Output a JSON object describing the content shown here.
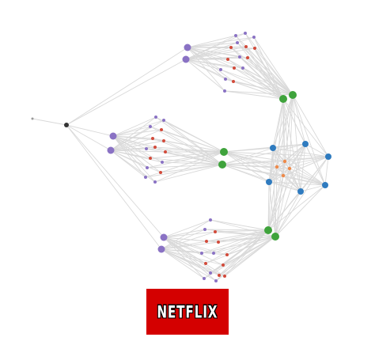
{
  "logo": {
    "text": "NETFLIX",
    "background_color": "#d40000",
    "text_color": "#ffffff"
  },
  "colors": {
    "edge": "#d9d9d9",
    "node_gray": "#333333",
    "node_input": "#999999",
    "node_purple": "#8a72c4",
    "node_red": "#d24a3a",
    "node_green": "#3fa33c",
    "node_blue": "#2f7bbf",
    "node_orange": "#ee8a4a"
  }
}
